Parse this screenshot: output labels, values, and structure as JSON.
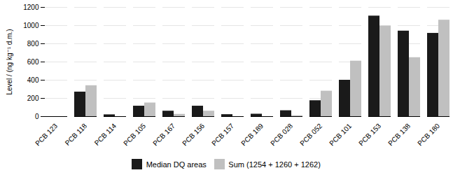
{
  "chart_data": {
    "type": "bar",
    "categories": [
      "PCB 123",
      "PCB 118",
      "PCB 114",
      "PCB 105",
      "PCB 167",
      "PCB 156",
      "PCB 157",
      "PCB 189",
      "PCB 028",
      "PCB 052",
      "PCB 101",
      "PCB 153",
      "PCB 138",
      "PCB 180"
    ],
    "series": [
      {
        "name": "Median DQ areas",
        "color": "#1a1a1a",
        "values": [
          0,
          270,
          20,
          115,
          60,
          115,
          22,
          27,
          65,
          175,
          400,
          1105,
          940,
          915
        ]
      },
      {
        "name": "Sum (1254 + 1260 + 1262)",
        "color": "#c0c0c0",
        "values": [
          0,
          340,
          0,
          150,
          25,
          60,
          0,
          0,
          10,
          280,
          610,
          995,
          648,
          1060
        ]
      }
    ],
    "ylabel": "Level / (ng kg⁻¹ d.m.)",
    "ylim": [
      0,
      1200
    ],
    "yticks": [
      0,
      200,
      400,
      600,
      800,
      1000,
      1200
    ],
    "grid": true,
    "legend": "bottom"
  }
}
